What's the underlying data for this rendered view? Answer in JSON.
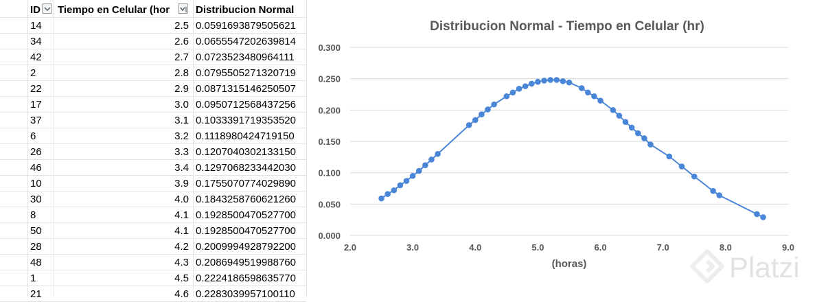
{
  "table": {
    "headers": [
      "ID",
      "Tiempo en Celular (hor",
      "Distribucion Normal"
    ],
    "rows": [
      {
        "id": "14",
        "tiempo": "2.5",
        "dist": "0.0591693879505621"
      },
      {
        "id": "34",
        "tiempo": "2.6",
        "dist": "0.0655547202639814"
      },
      {
        "id": "42",
        "tiempo": "2.7",
        "dist": "0.0723523480964111"
      },
      {
        "id": "2",
        "tiempo": "2.8",
        "dist": "0.0795505271320719"
      },
      {
        "id": "22",
        "tiempo": "2.9",
        "dist": "0.0871315146250507"
      },
      {
        "id": "17",
        "tiempo": "3.0",
        "dist": "0.0950712568437256"
      },
      {
        "id": "37",
        "tiempo": "3.1",
        "dist": "0.1033391719353520"
      },
      {
        "id": "6",
        "tiempo": "3.2",
        "dist": "0.1118980424719150"
      },
      {
        "id": "26",
        "tiempo": "3.3",
        "dist": "0.1207040302133150"
      },
      {
        "id": "46",
        "tiempo": "3.4",
        "dist": "0.1297068233442030"
      },
      {
        "id": "10",
        "tiempo": "3.9",
        "dist": "0.1755070774029890"
      },
      {
        "id": "30",
        "tiempo": "4.0",
        "dist": "0.1843258760621260"
      },
      {
        "id": "8",
        "tiempo": "4.1",
        "dist": "0.1928500470527700"
      },
      {
        "id": "50",
        "tiempo": "4.1",
        "dist": "0.1928500470527700"
      },
      {
        "id": "28",
        "tiempo": "4.2",
        "dist": "0.2009994928792200"
      },
      {
        "id": "48",
        "tiempo": "4.3",
        "dist": "0.2086949519988760"
      },
      {
        "id": "1",
        "tiempo": "4.5",
        "dist": "0.2224186598635770"
      },
      {
        "id": "21",
        "tiempo": "4.6",
        "dist": "0.2283039957100110"
      }
    ]
  },
  "chart_data": {
    "type": "line",
    "title": "Distribucion Normal - Tiempo en Celular (hr)",
    "xlabel": "(horas)",
    "ylabel": "",
    "xlim": [
      2.0,
      9.0
    ],
    "ylim": [
      0.0,
      0.3
    ],
    "x_ticks": [
      "2.0",
      "3.0",
      "4.0",
      "5.0",
      "6.0",
      "7.0",
      "8.0",
      "9.0"
    ],
    "y_ticks": [
      "0.000",
      "0.050",
      "0.100",
      "0.150",
      "0.200",
      "0.250",
      "0.300"
    ],
    "grid": true,
    "legend": "none",
    "series_color": "#4a86d8",
    "series": [
      {
        "x": [
          2.5,
          2.6,
          2.7,
          2.8,
          2.9,
          3.0,
          3.1,
          3.2,
          3.3,
          3.4,
          3.9,
          4.0,
          4.1,
          4.1,
          4.2,
          4.3,
          4.5,
          4.6,
          4.7,
          4.8,
          4.9,
          5.0,
          5.1,
          5.2,
          5.3,
          5.4,
          5.5,
          5.7,
          5.8,
          5.9,
          6.0,
          6.2,
          6.3,
          6.4,
          6.5,
          6.6,
          6.7,
          6.8,
          7.1,
          7.3,
          7.5,
          7.8,
          7.9,
          8.5,
          8.6
        ],
        "y": [
          0.059,
          0.066,
          0.072,
          0.08,
          0.087,
          0.095,
          0.103,
          0.112,
          0.121,
          0.13,
          0.176,
          0.184,
          0.193,
          0.193,
          0.201,
          0.209,
          0.222,
          0.228,
          0.234,
          0.238,
          0.242,
          0.245,
          0.247,
          0.248,
          0.248,
          0.246,
          0.244,
          0.235,
          0.228,
          0.222,
          0.215,
          0.2,
          0.191,
          0.181,
          0.172,
          0.163,
          0.155,
          0.145,
          0.126,
          0.11,
          0.094,
          0.071,
          0.064,
          0.034,
          0.029
        ]
      }
    ]
  },
  "watermark": {
    "text": "Platzi"
  }
}
